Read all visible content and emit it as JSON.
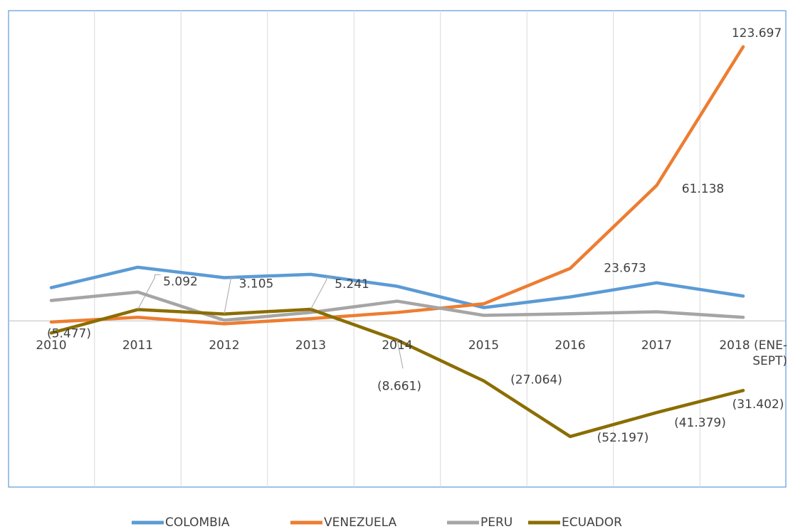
{
  "chart_data": {
    "type": "line",
    "categories": [
      "2010",
      "2011",
      "2012",
      "2013",
      "2014",
      "2015",
      "2016",
      "2017",
      "2018 (ENE-SEPT)"
    ],
    "series": [
      {
        "name": "COLOMBIA",
        "color": "#5b9bd5",
        "values": [
          15000,
          24200,
          19500,
          21000,
          15600,
          6000,
          10800,
          17200,
          11200
        ]
      },
      {
        "name": "VENEZUELA",
        "color": "#ed7d31",
        "values": [
          -500,
          1600,
          -1300,
          1000,
          3800,
          7700,
          23673,
          61138,
          123697
        ],
        "value_labels": [
          null,
          null,
          null,
          null,
          null,
          null,
          "23.673",
          "61.138",
          "123.697"
        ]
      },
      {
        "name": "PERU",
        "color": "#a5a5a5",
        "values": [
          9200,
          13000,
          300,
          3800,
          8900,
          2500,
          3200,
          4100,
          1600
        ]
      },
      {
        "name": "ECUADOR",
        "color": "#8b6d00",
        "values": [
          -5477,
          5092,
          3105,
          5241,
          -8661,
          -27064,
          -52197,
          -41379,
          -31402
        ],
        "value_labels": [
          "(5.477)",
          "5.092",
          "3.105",
          "5.241",
          "(8.661)",
          "(27.064)",
          "(52.197)",
          "(41.379)",
          "(31.402)"
        ]
      }
    ],
    "ylim": [
      -75000,
      140000
    ],
    "grid": true,
    "legend": "bottom"
  }
}
